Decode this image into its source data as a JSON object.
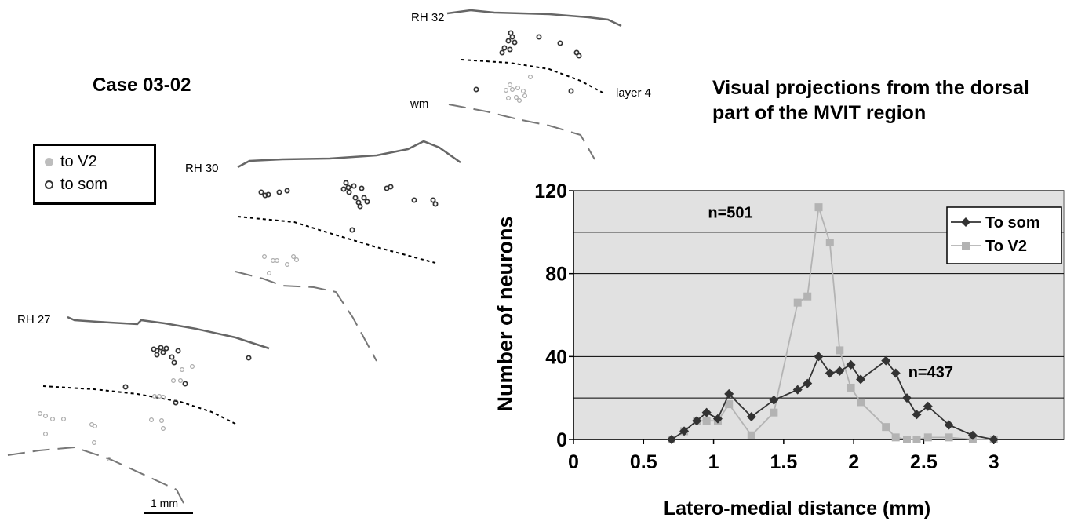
{
  "figure": {
    "case_label": "Case 03-02",
    "chart_heading": "Visual projections from the dorsal part of the MVIT region",
    "legend": [
      {
        "label": "to V2",
        "marker": "filled-circle",
        "color": "#bdbdbd"
      },
      {
        "label": "to som",
        "marker": "open-circle",
        "color": "#333333"
      }
    ],
    "sections": [
      {
        "id": "rh32",
        "label": "RH 32"
      },
      {
        "id": "rh30",
        "label": "RH 30"
      },
      {
        "id": "rh27",
        "label": "RH 27"
      }
    ],
    "layer_labels": {
      "layer4": "layer 4",
      "wm": "wm"
    },
    "scale_bar_label": "1 mm"
  },
  "chart_data": {
    "type": "line",
    "xlabel": "Latero-medial distance (mm)",
    "ylabel": "Number of neurons",
    "xlim": [
      0,
      3.5
    ],
    "ylim": [
      0,
      120
    ],
    "xticks": [
      0,
      0.5,
      1,
      1.5,
      2,
      2.5,
      3
    ],
    "yticks": [
      0,
      40,
      80,
      120
    ],
    "grid": true,
    "legend_position": "top-right",
    "series": [
      {
        "name": "To som",
        "color": "#333333",
        "marker": "diamond",
        "x": [
          0.7,
          0.79,
          0.88,
          0.95,
          1.03,
          1.11,
          1.27,
          1.43,
          1.6,
          1.67,
          1.75,
          1.83,
          1.9,
          1.98,
          2.05,
          2.23,
          2.3,
          2.38,
          2.45,
          2.53,
          2.68,
          2.85,
          3.0
        ],
        "y": [
          0,
          4,
          9,
          13,
          10,
          22,
          11,
          19,
          24,
          27,
          40,
          32,
          33,
          36,
          29,
          38,
          32,
          20,
          12,
          16,
          7,
          2,
          0
        ]
      },
      {
        "name": "To V2",
        "color": "#b3b3b3",
        "marker": "square",
        "x": [
          0.7,
          0.79,
          0.88,
          0.95,
          1.03,
          1.11,
          1.27,
          1.43,
          1.6,
          1.67,
          1.75,
          1.83,
          1.9,
          1.98,
          2.05,
          2.23,
          2.3,
          2.38,
          2.45,
          2.53,
          2.68,
          2.85,
          3.0
        ],
        "y": [
          0,
          4,
          9,
          9,
          9,
          17,
          2,
          13,
          66,
          69,
          112,
          95,
          43,
          25,
          18,
          6,
          1,
          0,
          0,
          1,
          1,
          0,
          0
        ]
      }
    ],
    "annotations": [
      {
        "text": "n=501",
        "x": 1.12,
        "y": 107
      },
      {
        "text": "n=437",
        "x": 2.55,
        "y": 30
      }
    ]
  }
}
